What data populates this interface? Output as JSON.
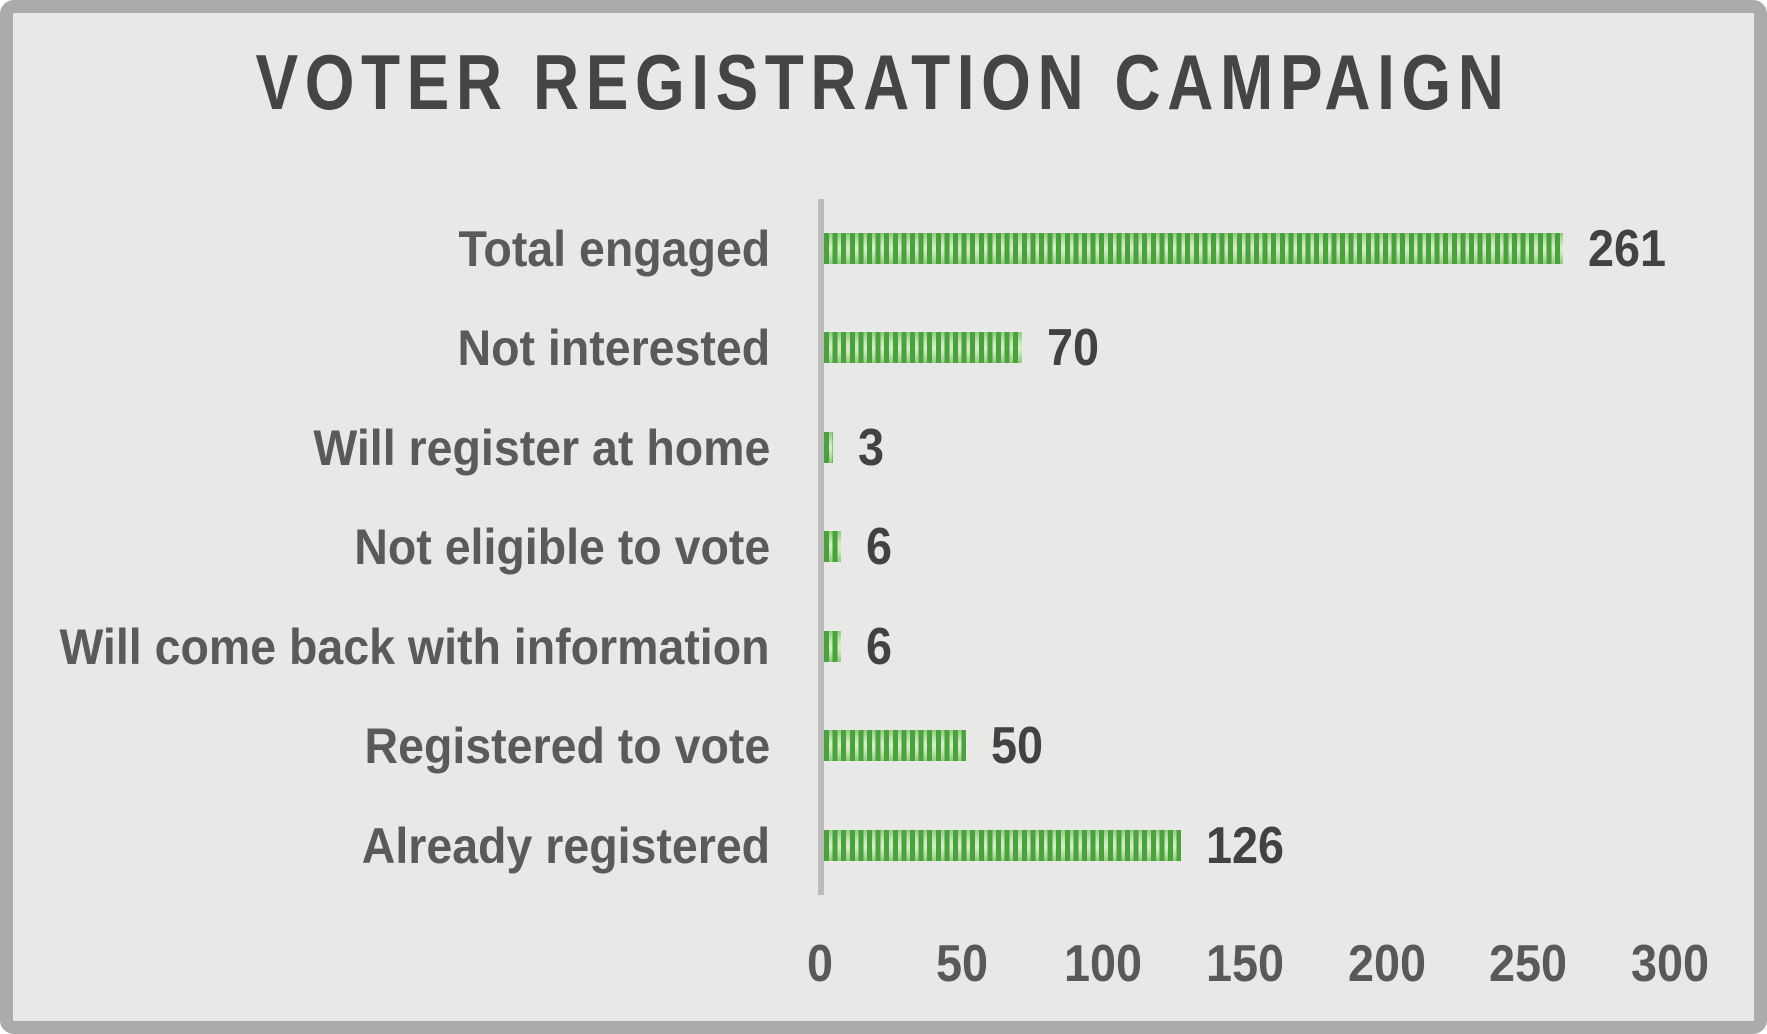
{
  "page": {
    "background_color": "#e8e8e7",
    "frame_color": "#ababab",
    "axis_line_color": "#bcbcbc",
    "label_color": "#5a5a5a",
    "value_color": "#424242",
    "title_color": "#454545",
    "bar_stripe_dark": "#4aa23c",
    "bar_stripe_light": "#d6edc9"
  },
  "chart_data": {
    "type": "bar",
    "orientation": "horizontal",
    "title": "VOTER REGISTRATION CAMPAIGN",
    "categories": [
      "Total engaged",
      "Not interested",
      "Will register at home",
      "Not eligible to vote",
      "Will come back with information",
      "Registered to vote",
      "Already registered"
    ],
    "values": [
      261,
      70,
      3,
      6,
      6,
      50,
      126
    ],
    "xlabel": "",
    "ylabel": "",
    "xlim": [
      0,
      300
    ],
    "x_ticks": [
      0,
      50,
      100,
      150,
      200,
      250,
      300
    ],
    "grid": "off",
    "legend": "none",
    "data_labels": "shown at bar end"
  }
}
